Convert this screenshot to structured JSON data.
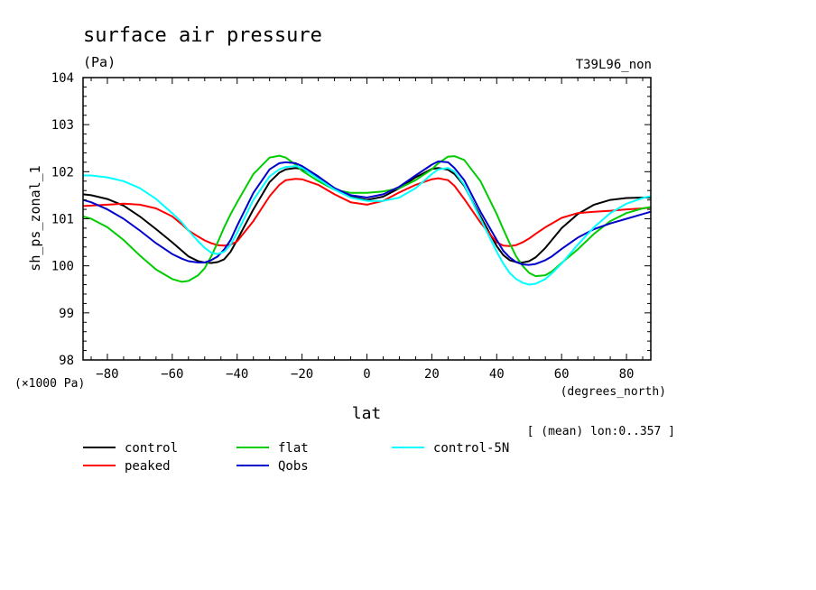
{
  "chart_data": {
    "type": "line",
    "title": "surface air pressure",
    "units": "(Pa)",
    "run_label": "T39L96_non",
    "xlabel": "lat",
    "x_units": "(degrees_north)",
    "ylabel": "sh_ps_zonal_1",
    "y_scale_label": "(×1000 Pa)",
    "footnote": "[ (mean) lon:0..357 ]",
    "xlim": [
      -87.5,
      87.5
    ],
    "ylim": [
      98,
      104
    ],
    "x_ticks": [
      -80,
      -60,
      -40,
      -20,
      0,
      20,
      40,
      60,
      80
    ],
    "x_tick_labels": [
      "−80",
      "−60",
      "−40",
      "−20",
      "0",
      "20",
      "40",
      "60",
      "80"
    ],
    "y_ticks": [
      98,
      99,
      100,
      101,
      102,
      103,
      104
    ],
    "y_tick_labels": [
      "98",
      "99",
      "100",
      "101",
      "102",
      "103",
      "104"
    ],
    "x": [
      -87.5,
      -85,
      -80,
      -75,
      -70,
      -65,
      -60,
      -57,
      -55,
      -52,
      -50,
      -48,
      -46,
      -44,
      -42,
      -40,
      -35,
      -30,
      -27,
      -25,
      -22,
      -20,
      -15,
      -10,
      -5,
      0,
      5,
      10,
      15,
      20,
      22,
      25,
      27,
      30,
      35,
      40,
      42,
      44,
      46,
      48,
      50,
      52,
      55,
      57,
      60,
      65,
      70,
      75,
      80,
      85,
      87.5
    ],
    "series": [
      {
        "name": "control",
        "color": "#000000",
        "values": [
          101.52,
          101.5,
          101.42,
          101.28,
          101.05,
          100.78,
          100.5,
          100.32,
          100.2,
          100.1,
          100.07,
          100.06,
          100.08,
          100.14,
          100.3,
          100.55,
          101.2,
          101.78,
          101.98,
          102.05,
          102.08,
          102.06,
          101.88,
          101.65,
          101.47,
          101.4,
          101.47,
          101.65,
          101.88,
          102.06,
          102.08,
          102.04,
          101.95,
          101.7,
          101.05,
          100.42,
          100.23,
          100.12,
          100.08,
          100.07,
          100.1,
          100.18,
          100.38,
          100.55,
          100.8,
          101.1,
          101.3,
          101.4,
          101.44,
          101.45,
          101.45
        ]
      },
      {
        "name": "peaked",
        "color": "#ff0000",
        "values": [
          101.27,
          101.28,
          101.3,
          101.32,
          101.3,
          101.22,
          101.05,
          100.88,
          100.75,
          100.62,
          100.54,
          100.48,
          100.44,
          100.43,
          100.45,
          100.52,
          100.95,
          101.48,
          101.72,
          101.82,
          101.85,
          101.84,
          101.72,
          101.52,
          101.35,
          101.3,
          101.38,
          101.56,
          101.72,
          101.84,
          101.86,
          101.82,
          101.7,
          101.42,
          100.92,
          100.5,
          100.43,
          100.42,
          100.44,
          100.5,
          100.58,
          100.68,
          100.82,
          100.9,
          101.02,
          101.12,
          101.15,
          101.17,
          101.2,
          101.22,
          101.24
        ]
      },
      {
        "name": "flat",
        "color": "#00cc00",
        "values": [
          101.05,
          101.0,
          100.82,
          100.55,
          100.22,
          99.92,
          99.72,
          99.66,
          99.68,
          99.8,
          99.95,
          100.2,
          100.5,
          100.82,
          101.1,
          101.35,
          101.95,
          102.3,
          102.34,
          102.3,
          102.15,
          102.02,
          101.8,
          101.62,
          101.55,
          101.55,
          101.58,
          101.65,
          101.82,
          102.05,
          102.18,
          102.32,
          102.33,
          102.25,
          101.8,
          101.1,
          100.78,
          100.48,
          100.2,
          100.0,
          99.85,
          99.78,
          99.8,
          99.88,
          100.06,
          100.35,
          100.68,
          100.95,
          101.12,
          101.22,
          101.25
        ]
      },
      {
        "name": "Qobs",
        "color": "#0000cc",
        "values": [
          101.4,
          101.35,
          101.2,
          101.0,
          100.75,
          100.48,
          100.25,
          100.15,
          100.1,
          100.07,
          100.07,
          100.12,
          100.2,
          100.35,
          100.55,
          100.85,
          101.55,
          102.05,
          102.18,
          102.2,
          102.18,
          102.12,
          101.9,
          101.65,
          101.5,
          101.45,
          101.52,
          101.68,
          101.92,
          102.15,
          102.22,
          102.2,
          102.08,
          101.82,
          101.15,
          100.55,
          100.32,
          100.18,
          100.08,
          100.03,
          100.02,
          100.04,
          100.12,
          100.2,
          100.36,
          100.6,
          100.78,
          100.9,
          101.0,
          101.1,
          101.15
        ]
      },
      {
        "name": "control-5N",
        "color": "#00ffff",
        "values": [
          101.92,
          101.92,
          101.88,
          101.8,
          101.65,
          101.42,
          101.12,
          100.92,
          100.75,
          100.52,
          100.38,
          100.28,
          100.25,
          100.3,
          100.45,
          100.7,
          101.4,
          101.9,
          102.05,
          102.1,
          102.12,
          102.08,
          101.85,
          101.62,
          101.45,
          101.38,
          101.38,
          101.45,
          101.65,
          101.95,
          102.05,
          102.08,
          102.0,
          101.72,
          101.0,
          100.3,
          100.05,
          99.85,
          99.72,
          99.64,
          99.6,
          99.62,
          99.72,
          99.84,
          100.05,
          100.45,
          100.82,
          101.12,
          101.32,
          101.44,
          101.48
        ]
      }
    ],
    "legend_position": "below-left"
  }
}
